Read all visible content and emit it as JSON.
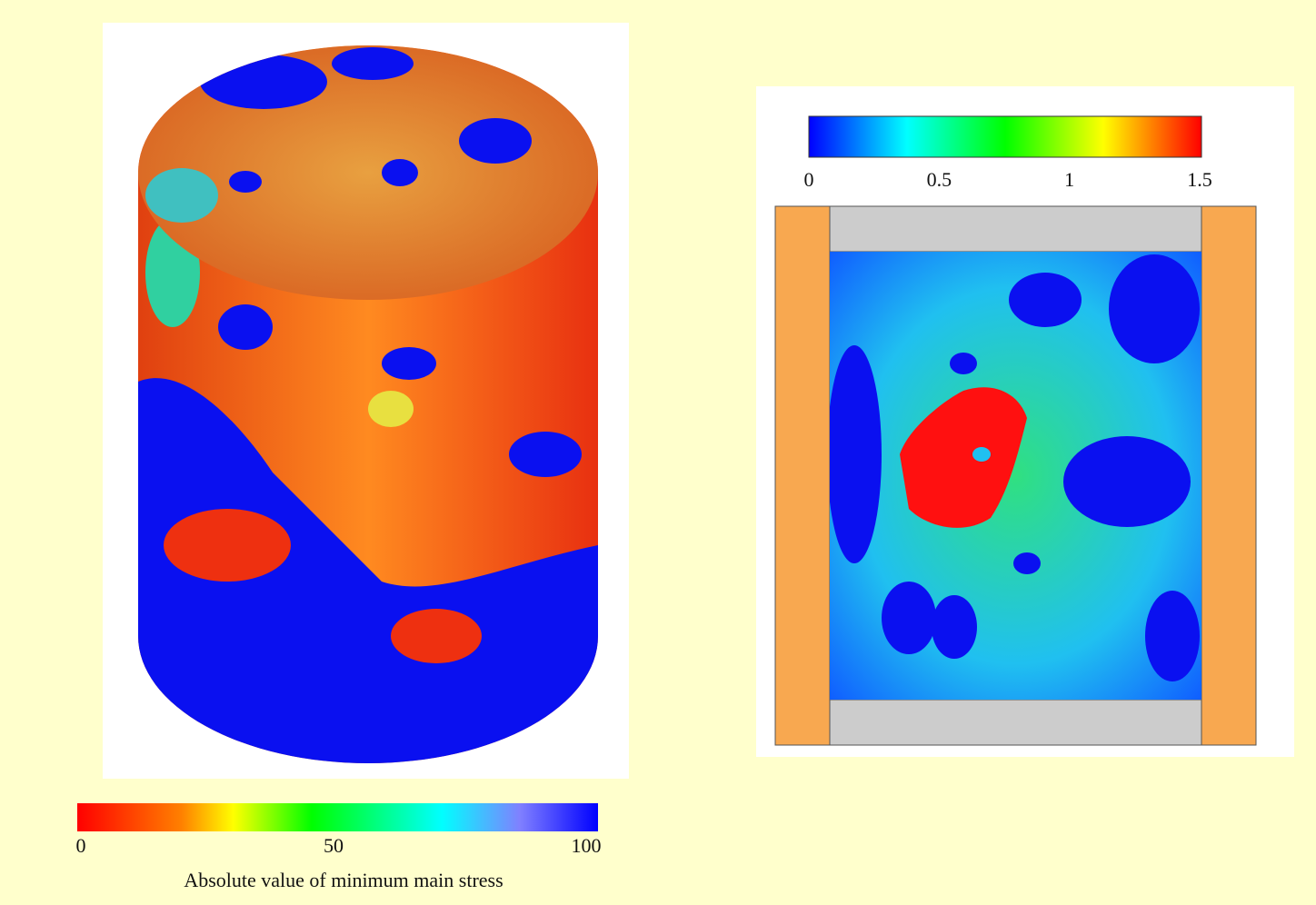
{
  "left_figure": {
    "colorbar": {
      "ticks": [
        0,
        50,
        100
      ],
      "label": "Absolute value of minimum main stress"
    }
  },
  "right_figure": {
    "colorbar": {
      "ticks": [
        0,
        0.5,
        1,
        1.5
      ]
    }
  }
}
